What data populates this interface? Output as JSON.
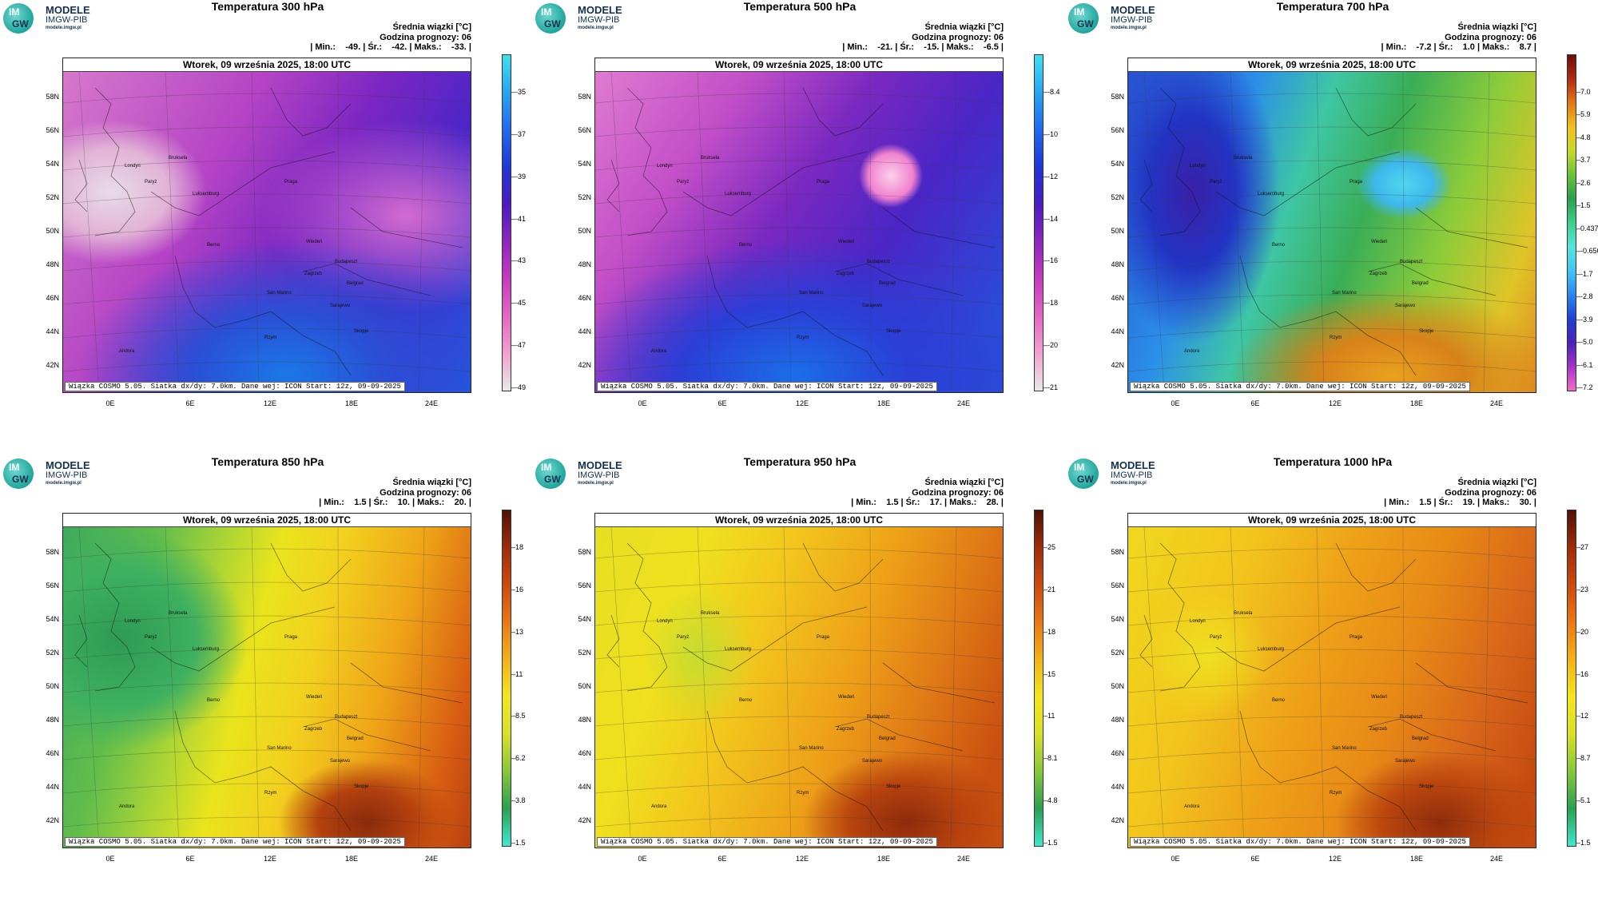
{
  "logo": {
    "line1": "MODELE",
    "line2": "IMGW-PIB",
    "line3": "modele.imgw.pl",
    "im": "IM",
    "gw": "GW"
  },
  "common": {
    "date_title": "Wtorek, 09 września 2025, 18:00 UTC",
    "unit_label": "Średnia wiązki [°C]",
    "forecast_hour": "Godzina prognozy: 06",
    "footer": "Wiązka COSMO 5.05. Siatka dx/dy: 7.0km. Dane wej: ICON Start: 12z, 09-09-2025",
    "lat_labels": [
      "58N",
      "56N",
      "54N",
      "52N",
      "50N",
      "48N",
      "46N",
      "44N",
      "42N"
    ],
    "lon_labels": [
      "0E",
      "6E",
      "12E",
      "18E",
      "24E"
    ],
    "cities": [
      "Londyn",
      "Bruksela",
      "Paryż",
      "Luksemburg",
      "Praga",
      "Wiedeń",
      "Budapeszt",
      "Berno",
      "Zagrzeb",
      "Belgrad",
      "San Marino",
      "Sarajewo",
      "Skopje",
      "Rzym",
      "Andora"
    ]
  },
  "panels": [
    {
      "title": "Temperatura 300 hPa",
      "stats": "| Min.:    -49. | Śr.:    -42. | Maks.:    -33. |",
      "ticks": [
        "-35",
        "-37",
        "-39",
        "-41",
        "-43",
        "-45",
        "-47",
        "-49"
      ],
      "palette": "cold"
    },
    {
      "title": "Temperatura 500 hPa",
      "stats": "| Min.:    -21. | Śr.:    -15. | Maks.:    -6.5 |",
      "ticks": [
        "-8.4",
        "-10",
        "-12",
        "-14",
        "-16",
        "-18",
        "-20",
        "-21"
      ],
      "palette": "cold2"
    },
    {
      "title": "Temperatura 700 hPa",
      "stats": "| Min.:    -7.2 | Śr.:    1.0 | Maks.:    8.7 |",
      "ticks": [
        "7.0",
        "5.9",
        "4.8",
        "3.7",
        "2.6",
        "1.5",
        "0.437",
        "-0.656",
        "-1.7",
        "-2.8",
        "-3.9",
        "-5.0",
        "-6.1",
        "-7.2"
      ],
      "palette": "mid"
    },
    {
      "title": "Temperatura 850 hPa",
      "stats": "| Min.:    1.5 | Śr.:    10. | Maks.:    20. |",
      "ticks": [
        "18",
        "16",
        "13",
        "11",
        "8.5",
        "6.2",
        "3.8",
        "1.5"
      ],
      "palette": "warm1"
    },
    {
      "title": "Temperatura 950 hPa",
      "stats": "| Min.:    1.5 | Śr.:    17. | Maks.:    28. |",
      "ticks": [
        "25",
        "21",
        "18",
        "15",
        "11",
        "8.1",
        "4.8",
        "1.5"
      ],
      "palette": "warm2"
    },
    {
      "title": "Temperatura 1000 hPa",
      "stats": "| Min.:    1.5 | Śr.:    19. | Maks.:    30. |",
      "ticks": [
        "27",
        "23",
        "20",
        "16",
        "12",
        "8.7",
        "5.1",
        "1.5"
      ],
      "palette": "warm3"
    }
  ]
}
